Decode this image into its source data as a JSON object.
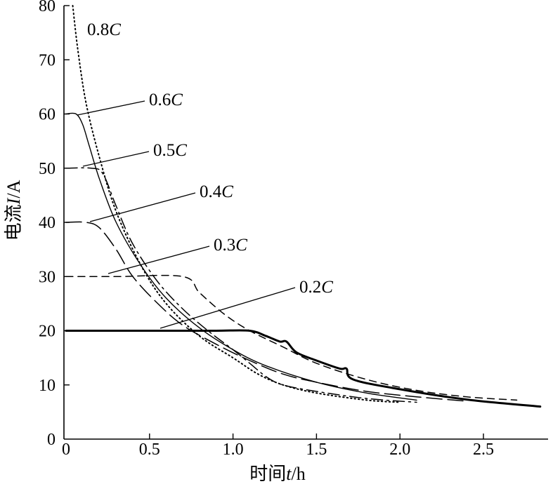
{
  "chart_data": {
    "type": "line",
    "xlabel_prefix": "时间",
    "xlabel_var": "t",
    "xlabel_unit": "/h",
    "ylabel_prefix": "电流",
    "ylabel_var": "I",
    "ylabel_unit": "/A",
    "xlim": [
      0,
      2.85
    ],
    "ylim": [
      0,
      80
    ],
    "x_ticks": [
      {
        "v": 0,
        "label": "0"
      },
      {
        "v": 0.5,
        "label": "0.5"
      },
      {
        "v": 1.0,
        "label": "1.0"
      },
      {
        "v": 1.5,
        "label": "1.5"
      },
      {
        "v": 2.0,
        "label": "2.0"
      },
      {
        "v": 2.5,
        "label": "2.5"
      }
    ],
    "y_ticks": [
      {
        "v": 0,
        "label": "0"
      },
      {
        "v": 10,
        "label": "10"
      },
      {
        "v": 20,
        "label": "20"
      },
      {
        "v": 30,
        "label": "30"
      },
      {
        "v": 40,
        "label": "40"
      },
      {
        "v": 50,
        "label": "50"
      },
      {
        "v": 60,
        "label": "60"
      },
      {
        "v": 70,
        "label": "70"
      },
      {
        "v": 80,
        "label": "80"
      }
    ],
    "grid": false,
    "legend": "inline leader labels",
    "series": [
      {
        "name_num": "0.2",
        "name_var": "C",
        "style": "solid-thick",
        "x": [
          0,
          0.3,
          0.6,
          0.9,
          1.1,
          1.2,
          1.28,
          1.32,
          1.38,
          1.5,
          1.64,
          1.68,
          1.72,
          2.0,
          2.4,
          2.84
        ],
        "y": [
          20,
          20,
          20,
          20,
          20,
          19,
          18,
          18,
          16,
          14.5,
          13,
          13,
          11,
          9.2,
          7.3,
          6
        ]
      },
      {
        "name_num": "0.3",
        "name_var": "C",
        "style": "dashed",
        "x": [
          0,
          0.3,
          0.7,
          0.8,
          0.95,
          1.1,
          1.3,
          1.5,
          1.8,
          2.1,
          2.4,
          2.7
        ],
        "y": [
          30,
          30,
          30,
          27,
          23,
          20,
          17,
          14,
          11,
          9,
          7.8,
          7.2
        ]
      },
      {
        "name_num": "0.4",
        "name_var": "C",
        "style": "long-dash",
        "x": [
          0,
          0.12,
          0.2,
          0.3,
          0.4,
          0.55,
          0.7,
          0.9,
          1.1,
          1.3,
          1.5,
          1.8,
          2.1,
          2.4
        ],
        "y": [
          40,
          40,
          39,
          35,
          30,
          25,
          21,
          17.5,
          14.5,
          12,
          10.5,
          8.8,
          7.8,
          7
        ]
      },
      {
        "name_num": "0.5",
        "name_var": "C",
        "style": "dash-dot",
        "x": [
          0,
          0.15,
          0.22,
          0.3,
          0.4,
          0.55,
          0.7,
          0.85,
          1.0,
          1.1,
          1.2,
          1.3,
          1.5,
          1.8,
          2.1
        ],
        "y": [
          50,
          50,
          49,
          43,
          36,
          29,
          24,
          20,
          16.5,
          14,
          11.5,
          10,
          8.8,
          7.5,
          6.8
        ]
      },
      {
        "name_num": "0.6",
        "name_var": "C",
        "style": "solid-thin",
        "x": [
          0,
          0.06,
          0.1,
          0.14,
          0.2,
          0.3,
          0.45,
          0.6,
          0.8,
          1.0,
          1.2,
          1.5,
          1.8,
          2.1
        ],
        "y": [
          60,
          60,
          58,
          54,
          48,
          40,
          32,
          26,
          20.5,
          16.5,
          13.5,
          10.5,
          8.5,
          7.2
        ]
      },
      {
        "name_num": "0.8",
        "name_var": "C",
        "style": "dotted",
        "x": [
          0.04,
          0.07,
          0.12,
          0.2,
          0.3,
          0.45,
          0.6,
          0.8,
          1.0,
          1.15,
          1.3,
          1.5,
          1.8,
          2.0
        ],
        "y": [
          80,
          72,
          62,
          52,
          42,
          32,
          25,
          19,
          15,
          12,
          10,
          8.5,
          7.2,
          6.8
        ]
      }
    ],
    "labels": [
      {
        "series": 0,
        "num": "0.2",
        "var": "C"
      },
      {
        "series": 1,
        "num": "0.3",
        "var": "C"
      },
      {
        "series": 2,
        "num": "0.4",
        "var": "C"
      },
      {
        "series": 3,
        "num": "0.5",
        "var": "C"
      },
      {
        "series": 4,
        "num": "0.6",
        "var": "C"
      },
      {
        "series": 5,
        "num": "0.8",
        "var": "C"
      }
    ]
  }
}
